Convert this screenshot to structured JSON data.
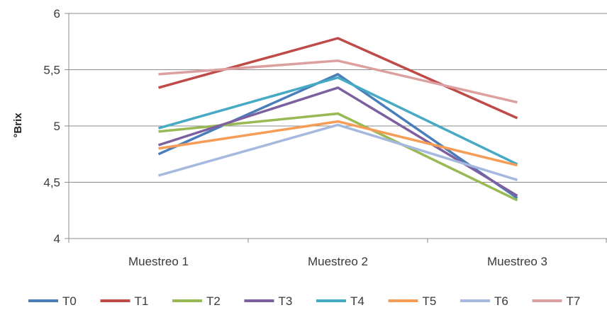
{
  "chart_data": {
    "type": "line",
    "title": "",
    "xlabel": "",
    "ylabel": "°Brix",
    "ylim": [
      4,
      6
    ],
    "yticks": [
      {
        "value": 4,
        "label": "4"
      },
      {
        "value": 4.5,
        "label": "4,5"
      },
      {
        "value": 5,
        "label": "5"
      },
      {
        "value": 5.5,
        "label": "5,5"
      },
      {
        "value": 6,
        "label": "6"
      }
    ],
    "grid": true,
    "legend_position": "bottom",
    "categories": [
      "Muestreo 1",
      "Muestreo 2",
      "Muestreo 3"
    ],
    "series": [
      {
        "name": "T0",
        "color": "#4a7ebb",
        "values": [
          4.75,
          5.46,
          4.36
        ]
      },
      {
        "name": "T1",
        "color": "#be4b48",
        "values": [
          5.34,
          5.78,
          5.07
        ]
      },
      {
        "name": "T2",
        "color": "#98b954",
        "values": [
          4.95,
          5.11,
          4.34
        ]
      },
      {
        "name": "T3",
        "color": "#7d60a0",
        "values": [
          4.83,
          5.34,
          4.38
        ]
      },
      {
        "name": "T4",
        "color": "#46aac5",
        "values": [
          4.98,
          5.43,
          4.66
        ]
      },
      {
        "name": "T5",
        "color": "#f59d56",
        "values": [
          4.8,
          5.04,
          4.65
        ]
      },
      {
        "name": "T6",
        "color": "#a5b9de",
        "values": [
          4.56,
          5.01,
          4.52
        ]
      },
      {
        "name": "T7",
        "color": "#dca0a0",
        "values": [
          5.46,
          5.58,
          5.21
        ]
      }
    ]
  }
}
